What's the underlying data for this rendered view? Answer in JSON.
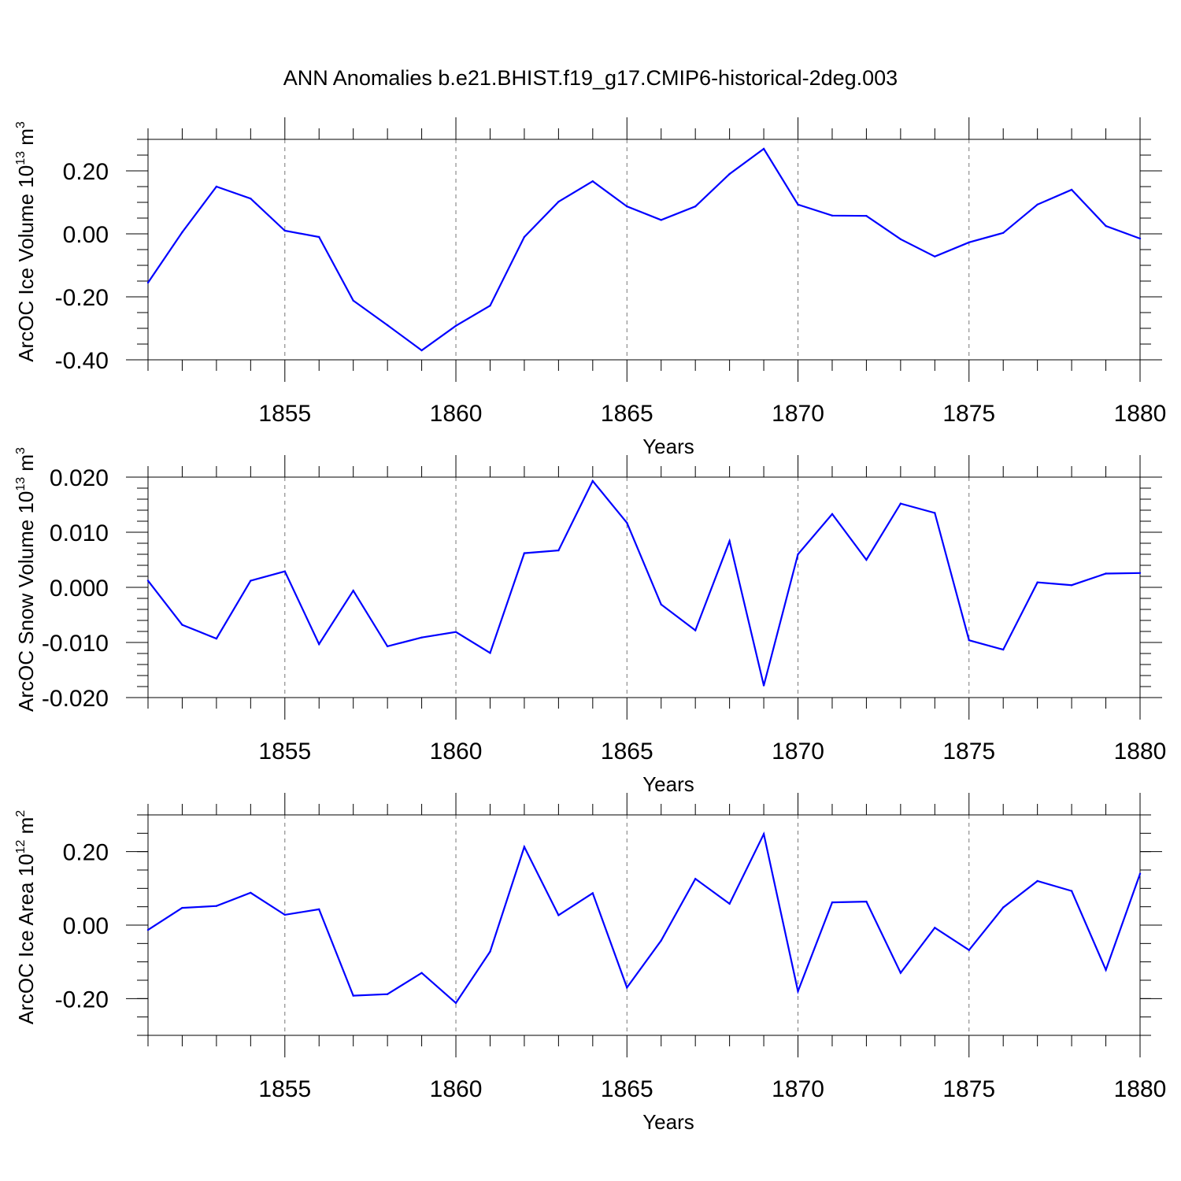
{
  "title": "ANN Anomalies b.e21.BHIST.f19_g17.CMIP6-historical-2deg.003",
  "chart_data": [
    {
      "type": "line",
      "title": "",
      "xlabel": "Years",
      "ylabel": "ArcOC Ice Volume 10",
      "ylabel_sup": "13",
      "ylabel_unit": "m",
      "ylabel_unit_sup": "3",
      "xlim": [
        1851,
        1880
      ],
      "ylim": [
        -0.4,
        0.3
      ],
      "yticks": [
        -0.4,
        -0.2,
        0.0,
        0.2
      ],
      "ytick_labels": [
        "-0.40",
        "-0.20",
        "0.00",
        "0.20"
      ],
      "yminor_step": 0.05,
      "xticks": [
        1855,
        1860,
        1865,
        1870,
        1875,
        1880
      ],
      "xtick_labels": [
        "1855",
        "1860",
        "1865",
        "1870",
        "1875",
        "1880"
      ],
      "line_color": "#0000ff",
      "grid": "dashed vertical at major x ticks",
      "x": [
        1851,
        1852,
        1853,
        1854,
        1855,
        1856,
        1857,
        1858,
        1859,
        1860,
        1861,
        1862,
        1863,
        1864,
        1865,
        1866,
        1867,
        1868,
        1869,
        1870,
        1871,
        1872,
        1873,
        1874,
        1875,
        1876,
        1877,
        1878,
        1879,
        1880
      ],
      "values": [
        -0.155,
        0.005,
        0.15,
        0.112,
        0.01,
        -0.01,
        -0.212,
        -0.29,
        -0.37,
        -0.292,
        -0.228,
        -0.01,
        0.102,
        0.167,
        0.087,
        0.044,
        0.087,
        0.19,
        0.27,
        0.093,
        0.058,
        0.057,
        -0.017,
        -0.072,
        -0.027,
        0.003,
        0.093,
        0.14,
        0.025,
        -0.015
      ]
    },
    {
      "type": "line",
      "title": "",
      "xlabel": "Years",
      "ylabel": "ArcOC Snow Volume 10",
      "ylabel_sup": "13",
      "ylabel_unit": "m",
      "ylabel_unit_sup": "3",
      "xlim": [
        1851,
        1880
      ],
      "ylim": [
        -0.02,
        0.02
      ],
      "yticks": [
        -0.02,
        -0.01,
        0.0,
        0.01,
        0.02
      ],
      "ytick_labels": [
        "-0.020",
        "-0.010",
        "0.000",
        "0.010",
        "0.020"
      ],
      "yminor_step": 0.002,
      "xticks": [
        1855,
        1860,
        1865,
        1870,
        1875,
        1880
      ],
      "xtick_labels": [
        "1855",
        "1860",
        "1865",
        "1870",
        "1875",
        "1880"
      ],
      "line_color": "#0000ff",
      "grid": "dashed vertical at major x ticks",
      "x": [
        1851,
        1852,
        1853,
        1854,
        1855,
        1856,
        1857,
        1858,
        1859,
        1860,
        1861,
        1862,
        1863,
        1864,
        1865,
        1866,
        1867,
        1868,
        1869,
        1870,
        1871,
        1872,
        1873,
        1874,
        1875,
        1876,
        1877,
        1878,
        1879,
        1880
      ],
      "values": [
        0.0012,
        -0.0068,
        -0.0093,
        0.0012,
        0.0029,
        -0.0103,
        -0.0006,
        -0.0107,
        -0.0091,
        -0.0081,
        -0.0119,
        0.0062,
        0.0067,
        0.0193,
        0.0117,
        -0.0031,
        -0.0078,
        0.0084,
        -0.0178,
        0.006,
        0.0133,
        0.005,
        0.0152,
        0.0135,
        -0.0096,
        -0.0113,
        0.0009,
        0.0004,
        0.0025,
        0.0026
      ]
    },
    {
      "type": "line",
      "title": "",
      "xlabel": "Years",
      "ylabel": "ArcOC Ice Area 10",
      "ylabel_sup": "12",
      "ylabel_unit": "m",
      "ylabel_unit_sup": "2",
      "xlim": [
        1851,
        1880
      ],
      "ylim": [
        -0.3,
        0.3
      ],
      "yticks": [
        -0.2,
        0.0,
        0.2
      ],
      "ytick_labels": [
        "-0.20",
        "0.00",
        "0.20"
      ],
      "yminor_step": 0.05,
      "xticks": [
        1855,
        1860,
        1865,
        1870,
        1875,
        1880
      ],
      "xtick_labels": [
        "1855",
        "1860",
        "1865",
        "1870",
        "1875",
        "1880"
      ],
      "line_color": "#0000ff",
      "grid": "dashed vertical at major x ticks",
      "x": [
        1851,
        1852,
        1853,
        1854,
        1855,
        1856,
        1857,
        1858,
        1859,
        1860,
        1861,
        1862,
        1863,
        1864,
        1865,
        1866,
        1867,
        1868,
        1869,
        1870,
        1871,
        1872,
        1873,
        1874,
        1875,
        1876,
        1877,
        1878,
        1879,
        1880
      ],
      "values": [
        -0.013,
        0.047,
        0.052,
        0.088,
        0.028,
        0.043,
        -0.192,
        -0.188,
        -0.13,
        -0.212,
        -0.072,
        0.213,
        0.027,
        0.087,
        -0.17,
        -0.042,
        0.126,
        0.058,
        0.248,
        -0.18,
        0.062,
        0.064,
        -0.13,
        -0.007,
        -0.068,
        0.048,
        0.12,
        0.093,
        -0.122,
        0.14
      ]
    }
  ]
}
